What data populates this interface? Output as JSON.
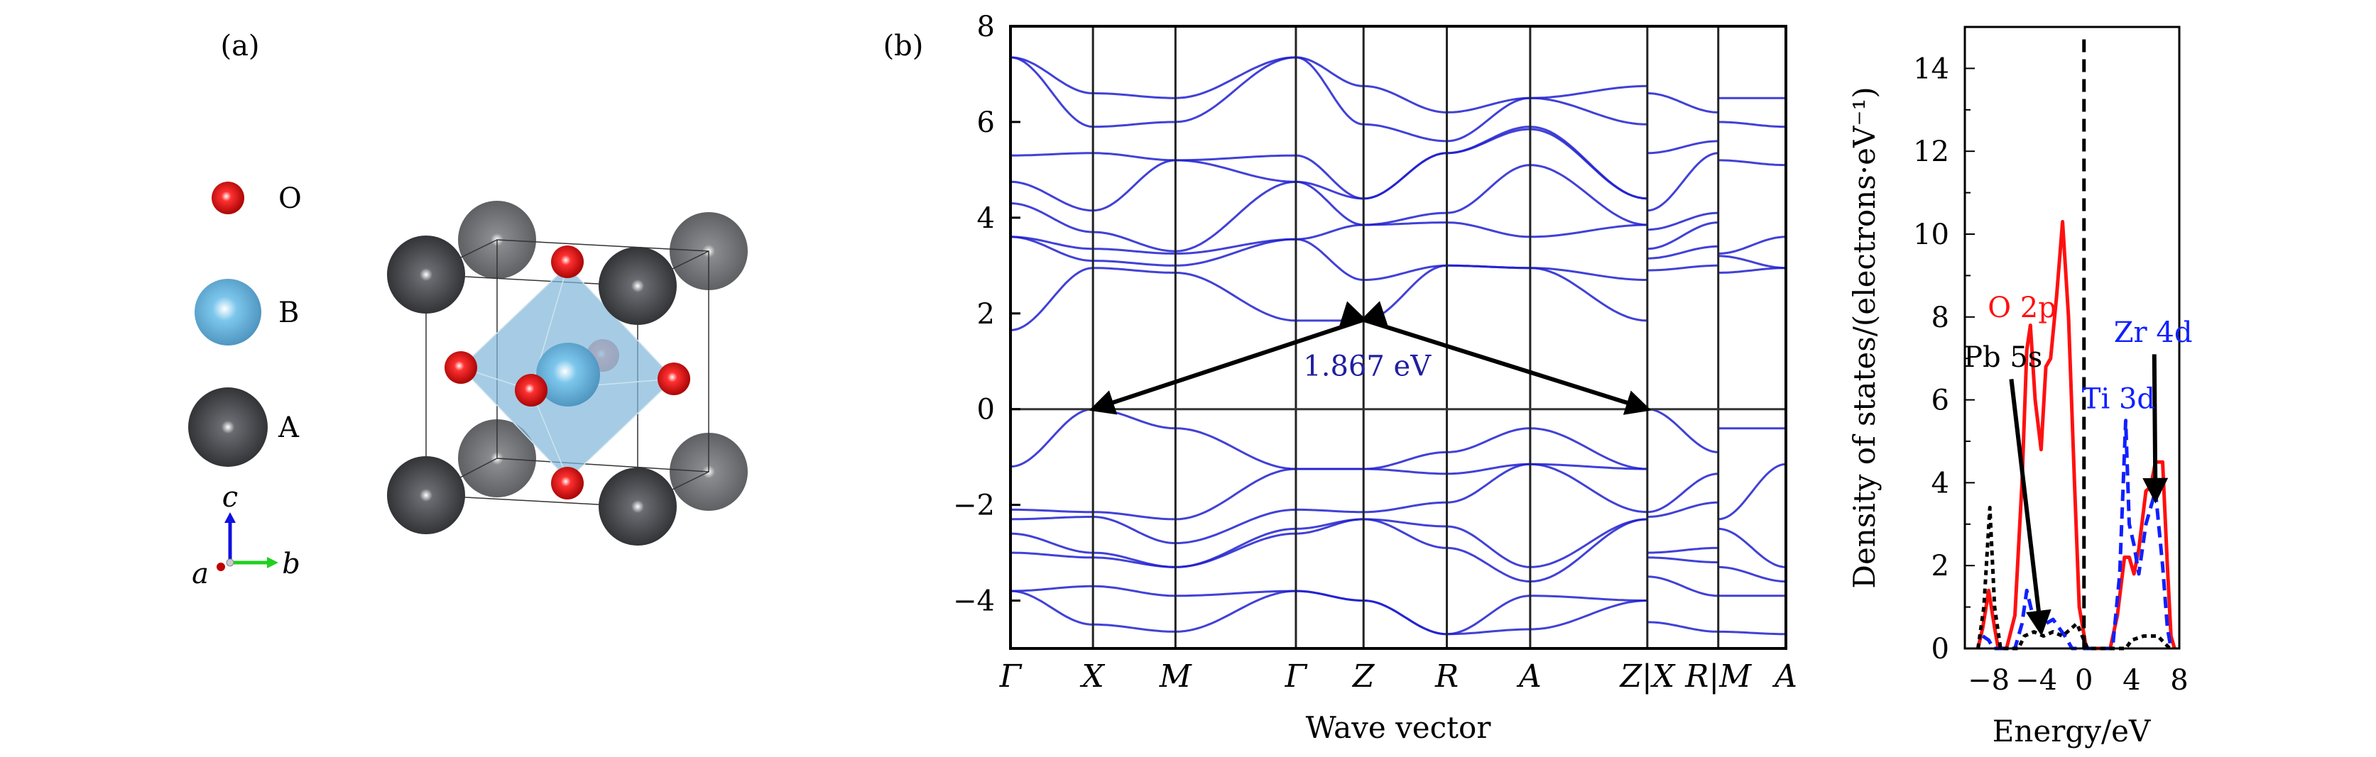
{
  "structure": {
    "panel_label": "(a)",
    "legend": [
      {
        "symbol": "O",
        "color": "#e01010"
      },
      {
        "symbol": "B",
        "color": "#6fb8e0"
      },
      {
        "symbol": "A",
        "color": "#4a4b4f"
      }
    ],
    "axes": {
      "a": "a",
      "b": "b",
      "c": "c"
    }
  },
  "chart_data": [
    {
      "type": "line",
      "panel_label": "(b)",
      "title": "",
      "xlabel": "Wave vector",
      "ylabel": "",
      "ylim": [
        -5,
        8
      ],
      "yticks": [
        8,
        6,
        4,
        2,
        0,
        -2,
        -4
      ],
      "kpoints": [
        {
          "label": "Γ",
          "k": 0
        },
        {
          "label": "X",
          "k": 1
        },
        {
          "label": "M",
          "k": 2
        },
        {
          "label": "Γ",
          "k": 3.46
        },
        {
          "label": "Z",
          "k": 4.28
        },
        {
          "label": "R",
          "k": 5.29
        },
        {
          "label": "A",
          "k": 6.3
        },
        {
          "label": "Z|X",
          "k": 7.72
        },
        {
          "label": "R|M",
          "k": 8.58
        },
        {
          "label": "A",
          "k": 9.4
        }
      ],
      "klim": [
        0,
        9.4
      ],
      "line_color": "#2020d0",
      "segments": [
        {
          "k": [
            0,
            1,
            2,
            3.46,
            4.28,
            5.29,
            6.3,
            7.72
          ],
          "bands": [
            [
              7.35,
              6.6,
              6.5,
              7.35,
              6.75,
              6.2,
              6.5,
              6.75
            ],
            [
              7.35,
              5.9,
              6.0,
              7.35,
              5.95,
              5.6,
              6.5,
              5.95
            ],
            [
              5.3,
              5.35,
              5.2,
              5.3,
              4.4,
              5.35,
              5.9,
              4.4
            ],
            [
              4.75,
              4.15,
              5.2,
              4.75,
              4.4,
              5.35,
              5.85,
              4.4
            ],
            [
              4.3,
              3.7,
              3.3,
              4.75,
              3.85,
              4.1,
              5.1,
              3.85
            ],
            [
              3.6,
              3.35,
              3.25,
              3.55,
              3.85,
              3.9,
              3.6,
              3.85
            ],
            [
              3.6,
              3.1,
              3.0,
              3.55,
              2.7,
              3.0,
              2.95,
              2.7
            ],
            [
              1.65,
              2.95,
              2.85,
              1.85,
              1.85,
              3.0,
              2.95,
              1.85
            ],
            [
              -1.2,
              0,
              -0.4,
              -1.25,
              -1.25,
              -0.9,
              -0.4,
              -1.25
            ],
            [
              -2.1,
              -2.15,
              -2.3,
              -1.25,
              -1.25,
              -1.35,
              -1.15,
              -1.25
            ],
            [
              -2.3,
              -2.25,
              -2.8,
              -2.1,
              -2.15,
              -1.95,
              -1.15,
              -2.15
            ],
            [
              -2.6,
              -3.0,
              -3.3,
              -2.5,
              -2.3,
              -2.45,
              -3.3,
              -2.3
            ],
            [
              -3.0,
              -3.1,
              -3.3,
              -2.6,
              -2.3,
              -2.9,
              -3.6,
              -2.3
            ],
            [
              -3.8,
              -3.7,
              -3.9,
              -3.8,
              -4.0,
              -4.7,
              -3.9,
              -4.0
            ],
            [
              -3.8,
              -4.5,
              -4.65,
              -3.8,
              -4.0,
              -4.7,
              -4.6,
              -4.0
            ]
          ]
        },
        {
          "k": [
            7.72,
            8.58
          ],
          "bands": [
            [
              6.6,
              6.2
            ],
            [
              5.35,
              5.6
            ],
            [
              4.15,
              5.35
            ],
            [
              3.75,
              4.1
            ],
            [
              3.35,
              3.9
            ],
            [
              3.15,
              3.4
            ],
            [
              2.9,
              3.0
            ],
            [
              0,
              -0.9
            ],
            [
              -2.15,
              -1.35
            ],
            [
              -2.25,
              -1.95
            ],
            [
              -3.0,
              -2.9
            ],
            [
              -3.1,
              -3.2
            ],
            [
              -3.5,
              -3.9
            ],
            [
              -4.45,
              -4.65
            ]
          ]
        },
        {
          "k": [
            8.58,
            9.4
          ],
          "bands": [
            [
              6.5,
              6.5
            ],
            [
              6.0,
              5.9
            ],
            [
              5.2,
              5.1
            ],
            [
              3.25,
              3.6
            ],
            [
              3.2,
              2.95
            ],
            [
              2.85,
              2.95
            ],
            [
              -0.4,
              -0.4
            ],
            [
              -2.3,
              -1.15
            ],
            [
              -2.5,
              -3.3
            ],
            [
              -3.3,
              -3.6
            ],
            [
              -3.9,
              -3.9
            ],
            [
              -4.65,
              -4.7
            ]
          ]
        }
      ],
      "fermi_level": 0,
      "gap": {
        "label": "1.867 eV",
        "value": 1.867,
        "cbm": {
          "k": 4.28,
          "E": 1.867
        },
        "vbm": [
          {
            "k": 1,
            "E": 0
          },
          {
            "k": 7.72,
            "E": 0
          }
        ],
        "label_color": "#2020a0"
      }
    },
    {
      "type": "line",
      "title": "",
      "xlabel": "Energy/eV",
      "ylabel": "Density of states/(electrons·eV⁻¹)",
      "xlim": [
        -10,
        8
      ],
      "ylim": [
        0,
        15
      ],
      "xticks": [
        -8,
        -4,
        0,
        4,
        8
      ],
      "yticks": [
        0,
        2,
        4,
        6,
        8,
        10,
        12,
        14
      ],
      "series": [
        {
          "name": "O 2p",
          "color": "#ff1010",
          "style": "solid",
          "points": [
            [
              -8.9,
              0
            ],
            [
              -8.5,
              0.5
            ],
            [
              -8,
              1.4
            ],
            [
              -7.5,
              0.5
            ],
            [
              -7.2,
              0
            ],
            [
              -6.5,
              0
            ],
            [
              -5.8,
              0.8
            ],
            [
              -5.2,
              4
            ],
            [
              -4.8,
              7.2
            ],
            [
              -4.5,
              7.8
            ],
            [
              -4.1,
              6
            ],
            [
              -3.6,
              4.8
            ],
            [
              -3.2,
              6.8
            ],
            [
              -2.8,
              7
            ],
            [
              -2.3,
              8.5
            ],
            [
              -1.8,
              10.3
            ],
            [
              -1.3,
              8
            ],
            [
              -0.8,
              4
            ],
            [
              -0.4,
              1
            ],
            [
              0.2,
              0
            ],
            [
              2.2,
              0
            ],
            [
              2.8,
              0.8
            ],
            [
              3.4,
              2.2
            ],
            [
              3.8,
              2.2
            ],
            [
              4.2,
              1.8
            ],
            [
              4.6,
              2.4
            ],
            [
              5.2,
              3.8
            ],
            [
              5.6,
              3.9
            ],
            [
              6.0,
              4.5
            ],
            [
              6.6,
              4.5
            ],
            [
              7.0,
              2
            ],
            [
              7.3,
              0.3
            ],
            [
              7.6,
              0
            ]
          ]
        },
        {
          "name": "Ti 3d / Zr 4d",
          "color": "#1020ff",
          "style": "dashed",
          "points": [
            [
              -8.5,
              0.3
            ],
            [
              -8,
              0.2
            ],
            [
              -7.6,
              0
            ],
            [
              -5.8,
              0
            ],
            [
              -5.2,
              0.6
            ],
            [
              -4.8,
              1.4
            ],
            [
              -4.3,
              0.8
            ],
            [
              -3.6,
              0.8
            ],
            [
              -3.2,
              0.6
            ],
            [
              -2.6,
              0.7
            ],
            [
              -1.6,
              0.3
            ],
            [
              -1,
              0
            ],
            [
              2.4,
              0
            ],
            [
              3,
              1.8
            ],
            [
              3.5,
              5.5
            ],
            [
              3.8,
              3
            ],
            [
              4.2,
              2.5
            ],
            [
              4.6,
              1.8
            ],
            [
              5.2,
              3
            ],
            [
              6,
              3.8
            ],
            [
              6.6,
              2
            ],
            [
              7.0,
              0.5
            ],
            [
              7.3,
              0
            ]
          ]
        },
        {
          "name": "Pb 5s",
          "color": "#000000",
          "style": "dotted",
          "points": [
            [
              -8.9,
              0
            ],
            [
              -8.4,
              1
            ],
            [
              -7.9,
              3.4
            ],
            [
              -7.5,
              1
            ],
            [
              -7,
              0
            ],
            [
              -5.5,
              0
            ],
            [
              -5,
              0.3
            ],
            [
              -4.2,
              0.4
            ],
            [
              -3.4,
              0.3
            ],
            [
              -2.6,
              0.4
            ],
            [
              -1.8,
              0.3
            ],
            [
              -0.6,
              0.6
            ],
            [
              0,
              0.2
            ],
            [
              0.3,
              0
            ],
            [
              3.5,
              0
            ],
            [
              4,
              0.2
            ],
            [
              5,
              0.3
            ],
            [
              6.2,
              0.3
            ],
            [
              7.2,
              0
            ]
          ]
        }
      ],
      "fermi_line": {
        "E": 0,
        "top": 14.7
      },
      "annotations": [
        {
          "text": "O 2p",
          "color": "#ff1010",
          "x": -5.2,
          "y": 8.2
        },
        {
          "text": "Pb 5s",
          "color": "#000000",
          "x": -6.8,
          "y": 7.0
        },
        {
          "text": "Ti 3d",
          "color": "#1020ff",
          "x": 2.9,
          "y": 6.0
        },
        {
          "text": "Zr 4d",
          "color": "#1020ff",
          "x": 5.8,
          "y": 7.6
        }
      ],
      "arrows": [
        {
          "from": [
            -6.1,
            6.5
          ],
          "to": [
            -3.6,
            0.4
          ]
        },
        {
          "from": [
            5.9,
            7.1
          ],
          "to": [
            6.0,
            3.6
          ]
        }
      ]
    }
  ]
}
